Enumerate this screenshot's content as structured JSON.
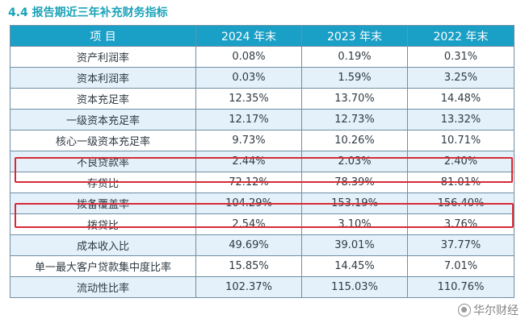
{
  "section_title": "4.4 报告期近三年补充财务指标",
  "table": {
    "headers": [
      "项 目",
      "2024 年末",
      "2023 年末",
      "2022 年末"
    ],
    "rows": [
      {
        "label": "资产利润率",
        "v2024": "0.08%",
        "v2023": "0.19%",
        "v2022": "0.31%"
      },
      {
        "label": "资本利润率",
        "v2024": "0.03%",
        "v2023": "1.59%",
        "v2022": "3.25%"
      },
      {
        "label": "资本充足率",
        "v2024": "12.35%",
        "v2023": "13.70%",
        "v2022": "14.48%"
      },
      {
        "label": "一级资本充足率",
        "v2024": "12.17%",
        "v2023": "12.73%",
        "v2022": "13.32%"
      },
      {
        "label": "核心一级资本充足率",
        "v2024": "9.73%",
        "v2023": "10.26%",
        "v2022": "10.71%"
      },
      {
        "label": "不良贷款率",
        "v2024": "2.44%",
        "v2023": "2.03%",
        "v2022": "2.40%"
      },
      {
        "label": "存贷比",
        "v2024": "72.12%",
        "v2023": "78.39%",
        "v2022": "81.01%"
      },
      {
        "label": "拨备覆盖率",
        "v2024": "104.29%",
        "v2023": "153.19%",
        "v2022": "156.40%"
      },
      {
        "label": "拨贷比",
        "v2024": "2.54%",
        "v2023": "3.10%",
        "v2022": "3.76%"
      },
      {
        "label": "成本收入比",
        "v2024": "49.69%",
        "v2023": "39.01%",
        "v2022": "37.77%"
      },
      {
        "label": "单一最大客户贷款集中度比率",
        "v2024": "15.85%",
        "v2023": "14.45%",
        "v2022": "7.01%"
      },
      {
        "label": "流动性比率",
        "v2024": "102.37%",
        "v2023": "115.03%",
        "v2022": "110.76%"
      }
    ]
  },
  "watermark": {
    "text": "华尔财经",
    "icon": "logo-icon"
  },
  "colors": {
    "header_bg": "#1a9fc6",
    "title": "#1aa3b8",
    "highlight": "#d62a36",
    "stripe": "#e4f1fa"
  }
}
